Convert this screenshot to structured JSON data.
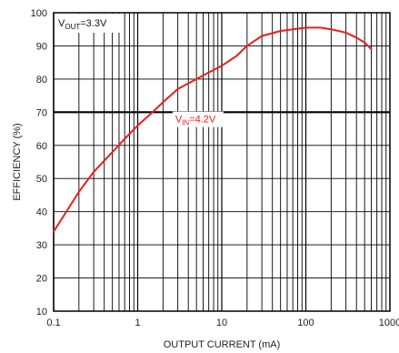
{
  "chart_data": {
    "type": "line",
    "xlabel": "OUTPUT CURRENT (mA)",
    "ylabel": "EFFICIENCY (%)",
    "xscale": "log",
    "xlim": [
      0.1,
      1000
    ],
    "ylim": [
      10,
      100
    ],
    "x_ticks": [
      "0.1",
      "1",
      "10",
      "100",
      "1000"
    ],
    "y_ticks": [
      "10",
      "20",
      "30",
      "40",
      "50",
      "60",
      "70",
      "80",
      "90",
      "100"
    ],
    "grid": true,
    "condition": {
      "prefix": "V",
      "sub": "OUT",
      "suffix": "=3.3V"
    },
    "condition_placement": "top-left",
    "highlight_y": 70,
    "series": [
      {
        "label": {
          "prefix": "V",
          "sub": "IN",
          "suffix": "=4.2V"
        },
        "color": "#ee1c1c",
        "x": [
          0.1,
          0.15,
          0.2,
          0.3,
          0.5,
          0.7,
          1,
          1.5,
          2,
          3,
          5,
          7,
          10,
          15,
          20,
          30,
          50,
          70,
          100,
          150,
          200,
          300,
          400,
          500,
          600
        ],
        "y": [
          34,
          41,
          46,
          52,
          58,
          62,
          66,
          70,
          73,
          77,
          80,
          82,
          84,
          87,
          90,
          93,
          94.5,
          95,
          95.5,
          95.5,
          95,
          94,
          92.5,
          91,
          89
        ]
      }
    ]
  },
  "colors": {
    "background": "#ffffff",
    "grid": "#000000",
    "curve": "#ee1c1c"
  }
}
